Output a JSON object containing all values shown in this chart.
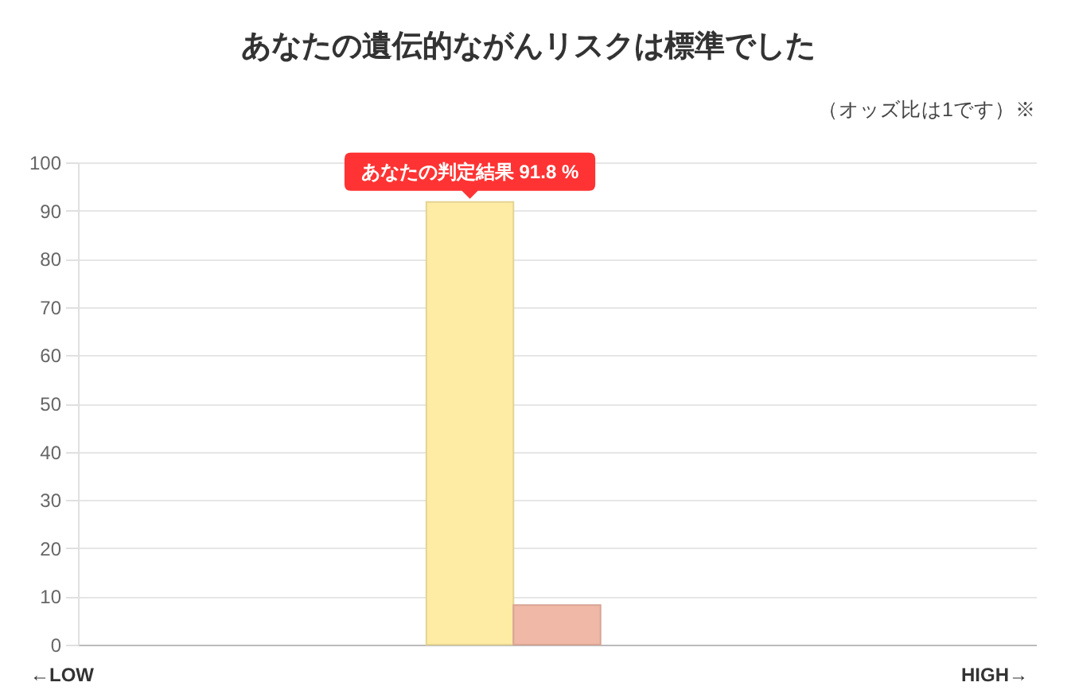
{
  "chart_data": {
    "type": "bar",
    "title": "あなたの遺伝的ながんリスクは標準でした",
    "subtitle": "（オッズ比は1です）※",
    "categories": [
      null,
      null,
      null,
      null,
      null,
      null,
      null,
      null,
      null,
      null,
      null
    ],
    "values": [
      null,
      null,
      null,
      null,
      91.8,
      8.2,
      null,
      null,
      null,
      null,
      null
    ],
    "colors": [
      null,
      null,
      null,
      null,
      "#feeca4",
      "#f0b8a6",
      null,
      null,
      null,
      null,
      null
    ],
    "value_labels": [
      null,
      null,
      null,
      null,
      "あなたの判定結果 91.8 %",
      null,
      null,
      null,
      null,
      null,
      null
    ],
    "ylim": [
      0,
      100
    ],
    "yticks": [
      0,
      10,
      20,
      30,
      40,
      50,
      60,
      70,
      80,
      90,
      100
    ],
    "grid": "y",
    "tick_labels": "y",
    "annotations": [
      "←LOW",
      "HIGH→"
    ]
  }
}
